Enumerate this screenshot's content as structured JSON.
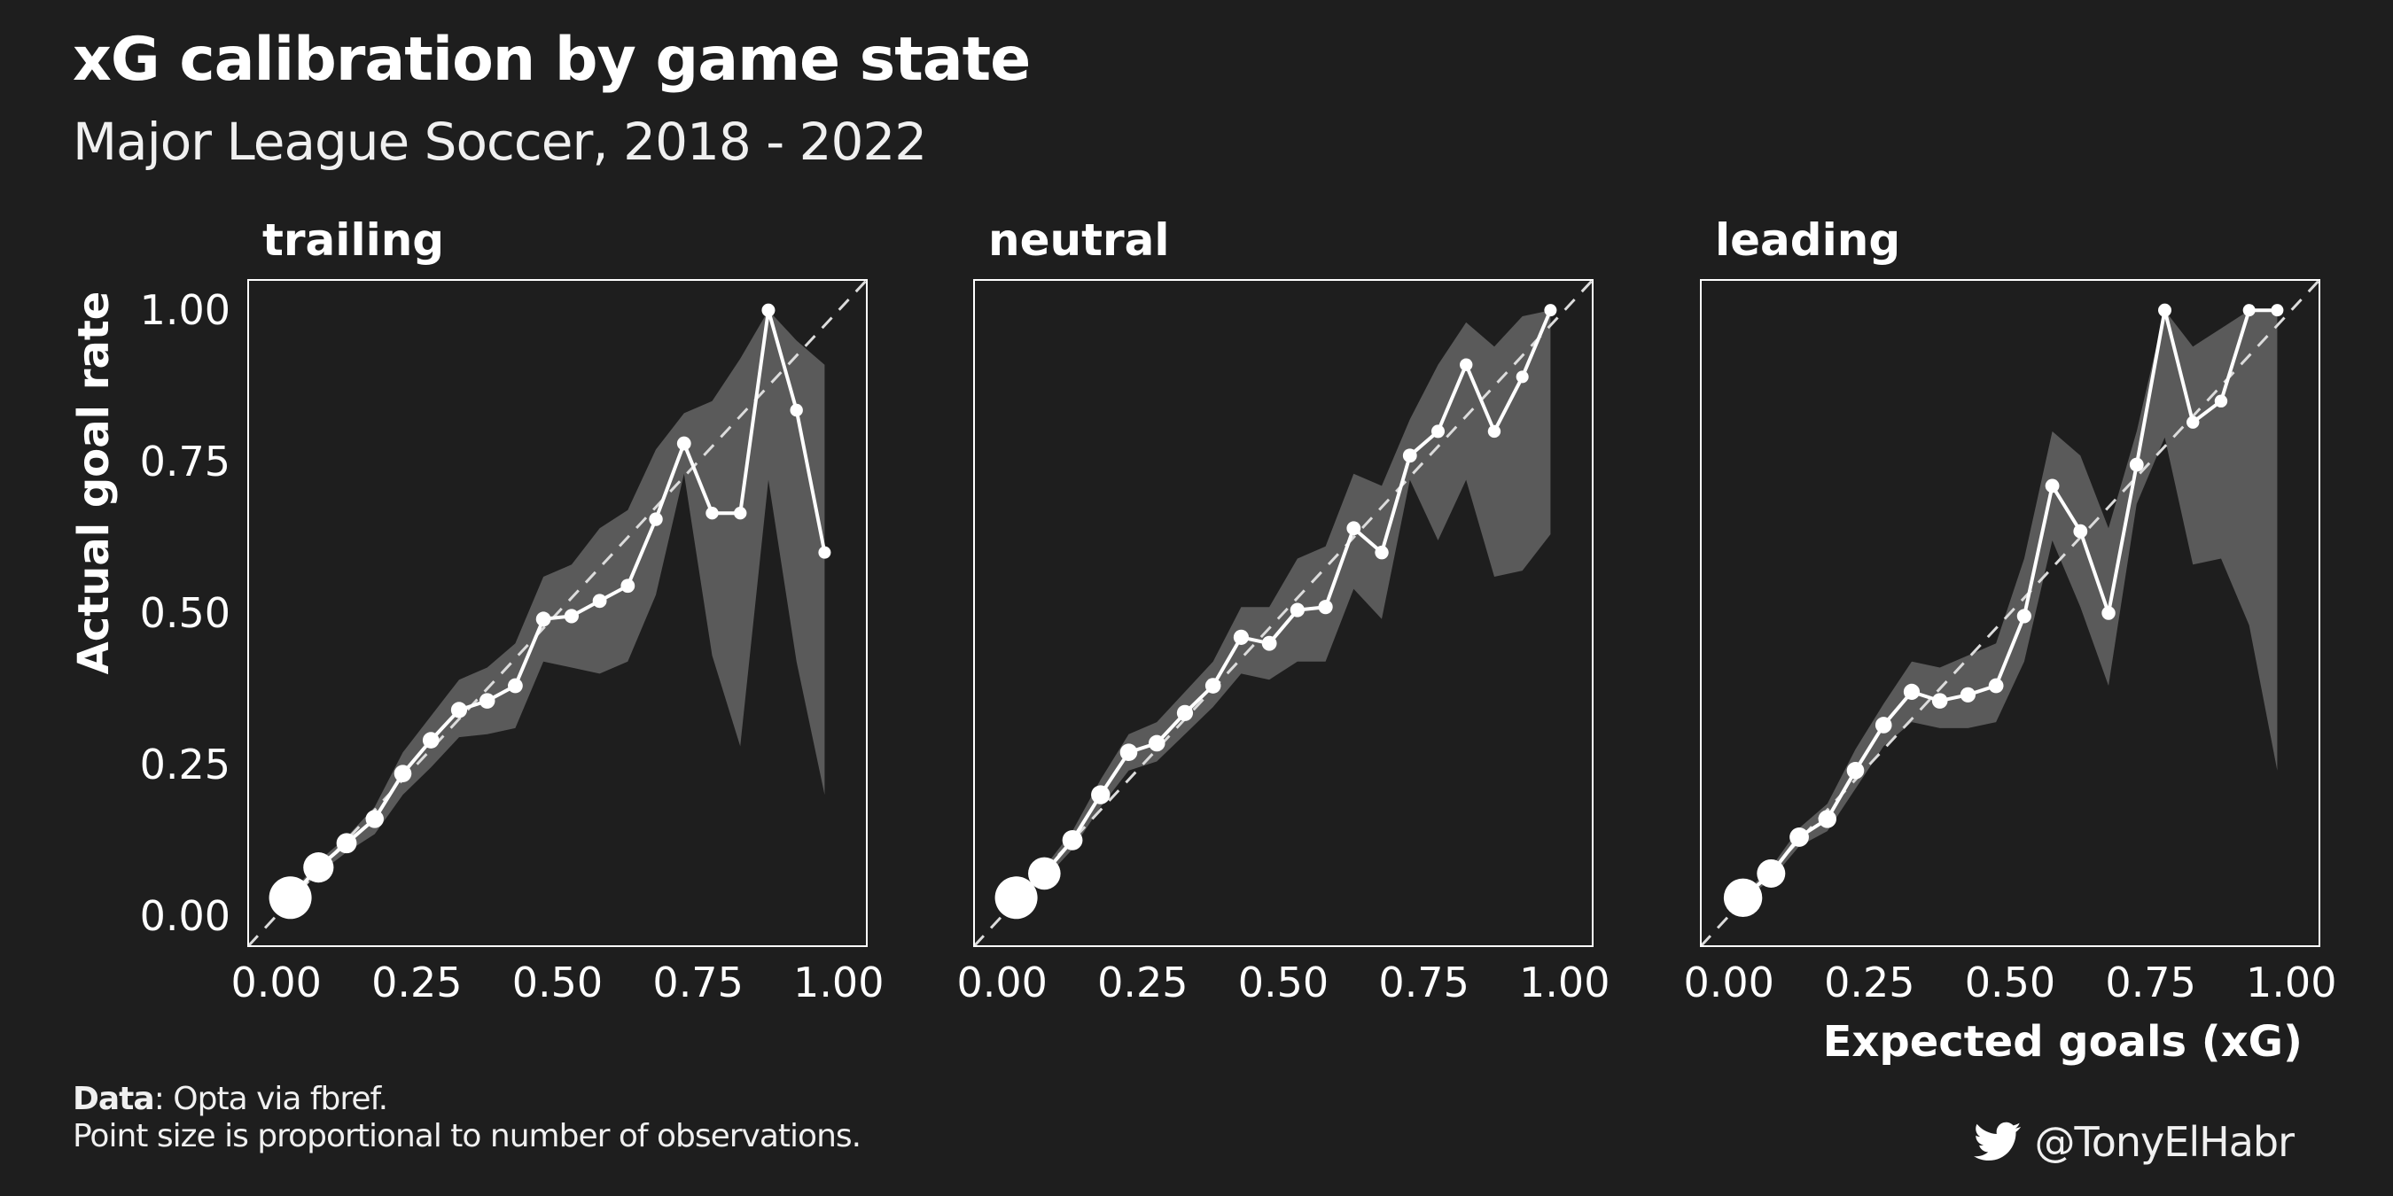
{
  "title": "xG calibration by game state",
  "subtitle": "Major League Soccer, 2018 - 2022",
  "caption": {
    "data_label": "Data",
    "data_text": ": Opta via fbref.",
    "note": "Point size is proportional to number of observations."
  },
  "handle": "@TonyElHabr",
  "icon": "twitter-bird-icon",
  "colors": {
    "background": "#1e1e1e",
    "ribbon": "#5a5a5a",
    "line": "#ffffff"
  },
  "chart_data": {
    "type": "line",
    "xlabel": "Expected goals (xG)",
    "ylabel": "Actual goal rate",
    "xlim": [
      -0.05,
      1.05
    ],
    "ylim": [
      -0.05,
      1.05
    ],
    "x_ticks": [
      "0.00",
      "0.25",
      "0.50",
      "0.75",
      "1.00"
    ],
    "y_ticks": [
      "0.00",
      "0.25",
      "0.50",
      "0.75",
      "1.00"
    ],
    "reference_line": "y = x (dashed)",
    "grid": false,
    "panels": [
      {
        "name": "trailing",
        "x": [
          0.025,
          0.075,
          0.125,
          0.175,
          0.225,
          0.275,
          0.325,
          0.375,
          0.425,
          0.475,
          0.525,
          0.575,
          0.625,
          0.675,
          0.725,
          0.775,
          0.825,
          0.875,
          0.925,
          0.975
        ],
        "y": [
          0.03,
          0.08,
          0.12,
          0.16,
          0.235,
          0.29,
          0.34,
          0.355,
          0.38,
          0.49,
          0.495,
          0.52,
          0.545,
          0.655,
          0.78,
          0.665,
          0.665,
          1.0,
          0.835,
          0.6
        ],
        "lower": [
          0.025,
          0.07,
          0.105,
          0.135,
          0.2,
          0.245,
          0.295,
          0.3,
          0.31,
          0.42,
          0.41,
          0.4,
          0.42,
          0.53,
          0.73,
          0.43,
          0.28,
          0.72,
          0.42,
          0.2
        ],
        "upper": [
          0.035,
          0.09,
          0.13,
          0.18,
          0.27,
          0.33,
          0.39,
          0.41,
          0.45,
          0.56,
          0.58,
          0.64,
          0.67,
          0.77,
          0.83,
          0.85,
          0.92,
          1.0,
          0.95,
          0.91
        ],
        "n_relative": [
          1.0,
          0.7,
          0.45,
          0.4,
          0.38,
          0.36,
          0.35,
          0.34,
          0.32,
          0.32,
          0.31,
          0.3,
          0.3,
          0.29,
          0.3,
          0.27,
          0.27,
          0.28,
          0.27,
          0.26
        ]
      },
      {
        "name": "neutral",
        "x": [
          0.025,
          0.075,
          0.125,
          0.175,
          0.225,
          0.275,
          0.325,
          0.375,
          0.425,
          0.475,
          0.525,
          0.575,
          0.625,
          0.675,
          0.725,
          0.775,
          0.825,
          0.875,
          0.925,
          0.975
        ],
        "y": [
          0.03,
          0.07,
          0.125,
          0.2,
          0.27,
          0.285,
          0.335,
          0.38,
          0.46,
          0.45,
          0.505,
          0.51,
          0.64,
          0.6,
          0.76,
          0.8,
          0.91,
          0.8,
          0.89,
          1.0
        ],
        "lower": [
          0.025,
          0.06,
          0.11,
          0.18,
          0.24,
          0.255,
          0.3,
          0.345,
          0.4,
          0.39,
          0.42,
          0.42,
          0.54,
          0.49,
          0.72,
          0.62,
          0.72,
          0.56,
          0.57,
          0.63
        ],
        "upper": [
          0.035,
          0.08,
          0.14,
          0.225,
          0.3,
          0.32,
          0.37,
          0.42,
          0.51,
          0.51,
          0.59,
          0.61,
          0.73,
          0.71,
          0.82,
          0.91,
          0.98,
          0.94,
          0.99,
          1.0
        ],
        "n_relative": [
          1.0,
          0.75,
          0.45,
          0.42,
          0.38,
          0.36,
          0.35,
          0.34,
          0.33,
          0.32,
          0.31,
          0.31,
          0.3,
          0.29,
          0.3,
          0.28,
          0.27,
          0.27,
          0.26,
          0.26
        ]
      },
      {
        "name": "leading",
        "x": [
          0.025,
          0.075,
          0.125,
          0.175,
          0.225,
          0.275,
          0.325,
          0.375,
          0.425,
          0.475,
          0.525,
          0.575,
          0.625,
          0.675,
          0.725,
          0.775,
          0.825,
          0.875,
          0.925,
          0.975
        ],
        "y": [
          0.03,
          0.07,
          0.13,
          0.16,
          0.24,
          0.315,
          0.37,
          0.355,
          0.365,
          0.38,
          0.495,
          0.71,
          0.635,
          0.5,
          0.745,
          1.0,
          0.815,
          0.85,
          1.0,
          1.0
        ],
        "lower": [
          0.025,
          0.06,
          0.115,
          0.14,
          0.21,
          0.28,
          0.32,
          0.31,
          0.31,
          0.32,
          0.42,
          0.62,
          0.51,
          0.38,
          0.68,
          0.79,
          0.58,
          0.59,
          0.48,
          0.24
        ],
        "upper": [
          0.035,
          0.08,
          0.145,
          0.185,
          0.275,
          0.35,
          0.42,
          0.41,
          0.43,
          0.45,
          0.59,
          0.8,
          0.76,
          0.64,
          0.8,
          1.0,
          0.94,
          0.97,
          1.0,
          1.0
        ],
        "n_relative": [
          0.9,
          0.65,
          0.43,
          0.4,
          0.38,
          0.36,
          0.35,
          0.34,
          0.33,
          0.32,
          0.31,
          0.3,
          0.3,
          0.29,
          0.3,
          0.28,
          0.27,
          0.27,
          0.26,
          0.26
        ]
      }
    ]
  }
}
